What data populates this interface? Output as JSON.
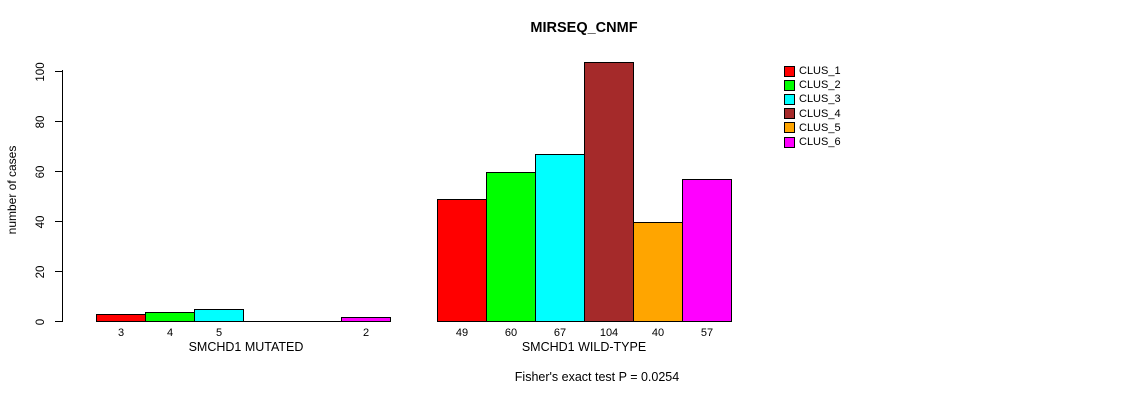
{
  "chart_data": {
    "type": "bar",
    "title": "MIRSEQ_CNMF",
    "ylabel": "number of cases",
    "ylim": [
      0,
      100
    ],
    "yticks": [
      0,
      20,
      40,
      60,
      80,
      100
    ],
    "grid": false,
    "legend_position": "right",
    "legend": [
      {
        "label": "CLUS_1",
        "color": "#FF0000"
      },
      {
        "label": "CLUS_2",
        "color": "#00FF00"
      },
      {
        "label": "CLUS_3",
        "color": "#00FFFF"
      },
      {
        "label": "CLUS_4",
        "color": "#A52A2A"
      },
      {
        "label": "CLUS_5",
        "color": "#FFA500"
      },
      {
        "label": "CLUS_6",
        "color": "#FF00FF"
      }
    ],
    "groups": [
      {
        "label": "SMCHD1 MUTATED",
        "clusters": [
          "CLUS_1",
          "CLUS_2",
          "CLUS_3",
          "CLUS_4",
          "CLUS_5",
          "CLUS_6"
        ],
        "values": [
          3,
          4,
          5,
          0,
          0,
          2
        ]
      },
      {
        "label": "SMCHD1 WILD-TYPE",
        "clusters": [
          "CLUS_1",
          "CLUS_2",
          "CLUS_3",
          "CLUS_4",
          "CLUS_5",
          "CLUS_6"
        ],
        "values": [
          49,
          60,
          67,
          104,
          40,
          57
        ]
      }
    ],
    "annotation": "Fisher's exact test P = 0.0254"
  }
}
